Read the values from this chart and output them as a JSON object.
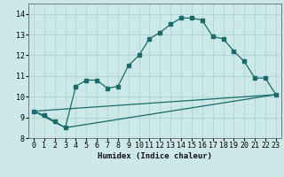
{
  "xlabel": "Humidex (Indice chaleur)",
  "ylabel": "",
  "xlim": [
    -0.5,
    23.5
  ],
  "ylim": [
    8.0,
    14.5
  ],
  "yticks": [
    8,
    9,
    10,
    11,
    12,
    13,
    14
  ],
  "xticks": [
    0,
    1,
    2,
    3,
    4,
    5,
    6,
    7,
    8,
    9,
    10,
    11,
    12,
    13,
    14,
    15,
    16,
    17,
    18,
    19,
    20,
    21,
    22,
    23
  ],
  "bg_color": "#cce8e8",
  "line_color": "#1a6b6b",
  "grid_color": "#aed4d4",
  "curve1_x": [
    0,
    1,
    2,
    3,
    4,
    5,
    6,
    7,
    8,
    9,
    10,
    11,
    12,
    13,
    14,
    15,
    16,
    17,
    18,
    19,
    20,
    21,
    22,
    23
  ],
  "curve1_y": [
    9.3,
    9.1,
    8.8,
    8.5,
    10.5,
    10.8,
    10.8,
    10.4,
    10.5,
    11.5,
    12.0,
    12.8,
    13.1,
    13.5,
    13.8,
    13.8,
    13.7,
    12.9,
    12.8,
    12.2,
    11.7,
    10.9,
    10.9,
    10.1
  ],
  "curve2_x": [
    0,
    23
  ],
  "curve2_y": [
    9.3,
    10.1
  ],
  "curve3_x": [
    0,
    3,
    23
  ],
  "curve3_y": [
    9.3,
    8.5,
    10.1
  ],
  "xlabel_fontsize": 6.5,
  "tick_fontsize": 6
}
